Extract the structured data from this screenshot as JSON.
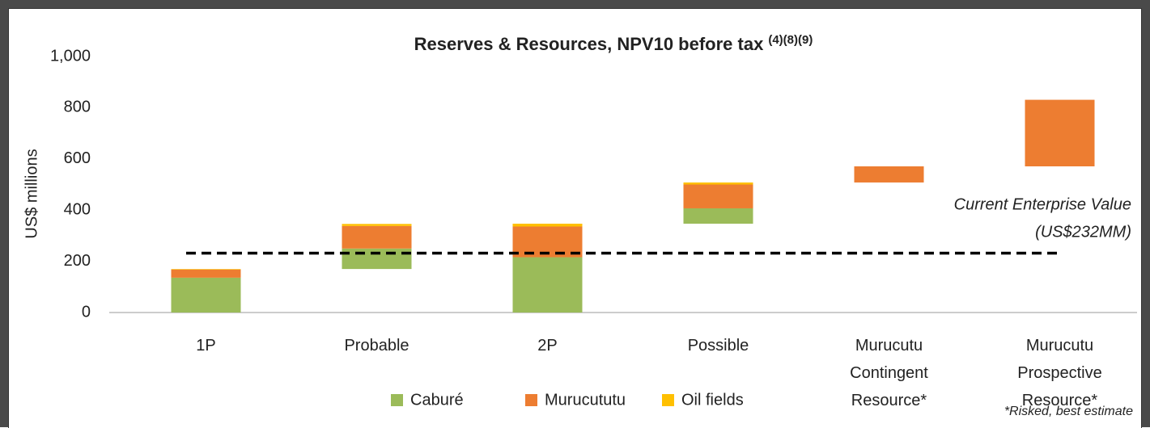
{
  "chart_data": {
    "type": "waterfall",
    "title": "Reserves & Resources, NPV10 before tax",
    "title_superscript": "(4)(8)(9)",
    "y_axis_label": "US$ millions",
    "categories": [
      "1P",
      "Probable",
      "2P",
      "Possible",
      "Murucutu Contingent Resource*",
      "Murucutu Prospective Resource*"
    ],
    "totals": [
      true,
      false,
      true,
      false,
      false,
      false
    ],
    "series": [
      {
        "name": "Caburé",
        "color": "#9bbb59",
        "values": [
          136,
          80,
          216,
          60,
          null,
          null
        ]
      },
      {
        "name": "Murucututu",
        "color": "#ed7d31",
        "values": [
          32,
          88,
          120,
          93,
          63,
          260
        ]
      },
      {
        "name": "Oil fields",
        "color": "#ffc000",
        "values": [
          2,
          8,
          11,
          8,
          null,
          null
        ]
      }
    ],
    "ylim": [
      0,
      1000
    ],
    "yticks": [
      0,
      200,
      400,
      600,
      800,
      {
        "value": 1000,
        "label": "1,000"
      }
    ],
    "grid": false,
    "reference_line": {
      "value": 232,
      "label_lines": [
        "Current Enterprise Value",
        "(US$232MM)"
      ]
    },
    "footnote": "*Risked, best estimate",
    "legend": "bottom"
  }
}
